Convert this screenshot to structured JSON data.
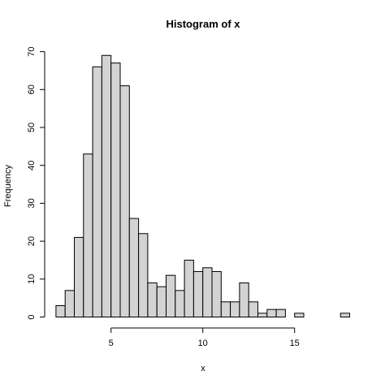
{
  "chart_data": {
    "type": "bar",
    "title": "Histogram of x",
    "xlabel": "x",
    "ylabel": "Frequency",
    "bin_width": 0.5,
    "bin_start": 2.0,
    "values": [
      3,
      7,
      21,
      43,
      66,
      69,
      67,
      61,
      26,
      22,
      9,
      8,
      11,
      7,
      15,
      12,
      13,
      12,
      4,
      4,
      9,
      4,
      1,
      2,
      2,
      0,
      1,
      0,
      0,
      0,
      0,
      1
    ],
    "xlim": [
      2,
      18
    ],
    "ylim": [
      0,
      70
    ],
    "x_ticks": [
      5,
      10,
      15
    ],
    "y_ticks": [
      0,
      10,
      20,
      30,
      40,
      50,
      60,
      70
    ],
    "bar_fill": "#d3d3d3",
    "bar_stroke": "#000000",
    "grid": false
  }
}
